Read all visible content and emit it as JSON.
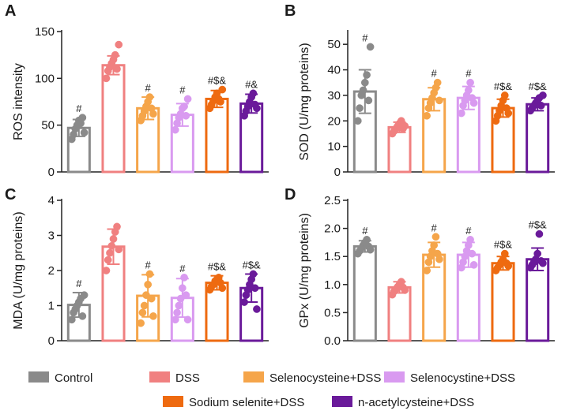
{
  "categories": [
    "Control",
    "DSS",
    "Selenocysteine+DSS",
    "Selenocystine+DSS",
    "Sodium selenite+DSS",
    "n-acetylcysteine+DSS"
  ],
  "colors": [
    "#8a8a8a",
    "#f08080",
    "#f5a54a",
    "#d99af0",
    "#ee6a10",
    "#6a1a9a"
  ],
  "chart_data": [
    {
      "type": "bar",
      "panel": "A",
      "ylabel": "ROS intensity",
      "ylim": [
        0,
        150
      ],
      "yticks": [
        0,
        50,
        100,
        150
      ],
      "values": [
        47,
        114,
        68,
        61,
        78,
        73
      ],
      "errors": [
        9,
        10,
        12,
        12,
        9,
        10
      ],
      "annotations": [
        "#",
        "",
        "#",
        "#",
        "#$&",
        "#&"
      ],
      "points": [
        [
          35,
          40,
          46,
          50,
          55,
          52,
          58,
          42
        ],
        [
          100,
          108,
          112,
          116,
          120,
          125,
          110,
          136
        ],
        [
          55,
          60,
          65,
          70,
          75,
          80,
          68,
          62
        ],
        [
          45,
          52,
          58,
          62,
          68,
          70,
          60,
          78
        ],
        [
          68,
          72,
          76,
          80,
          84,
          78,
          75,
          88
        ],
        [
          60,
          65,
          70,
          75,
          80,
          84,
          72,
          68
        ]
      ]
    },
    {
      "type": "bar",
      "panel": "B",
      "ylabel": "SOD (U/mg proteins)",
      "ylim": [
        0,
        55
      ],
      "yticks": [
        0,
        10,
        20,
        30,
        40,
        50
      ],
      "values": [
        31.5,
        17.5,
        28.5,
        29,
        25,
        26.5
      ],
      "errors": [
        8.5,
        2,
        4.5,
        4.5,
        3.5,
        2.5
      ],
      "annotations": [
        "#",
        "",
        "#",
        "#",
        "#$&",
        "#$&"
      ],
      "points": [
        [
          20,
          25,
          30,
          32,
          35,
          38,
          28,
          49
        ],
        [
          15,
          16,
          17,
          18,
          19,
          20,
          17,
          18
        ],
        [
          22,
          25,
          27,
          29,
          31,
          33,
          35,
          28
        ],
        [
          23,
          26,
          28,
          30,
          32,
          35,
          29,
          27
        ],
        [
          20,
          22,
          24,
          26,
          28,
          30,
          25,
          23
        ],
        [
          24,
          25,
          26,
          27,
          28,
          29,
          26,
          30
        ]
      ]
    },
    {
      "type": "bar",
      "panel": "C",
      "ylabel": "MDA  (U/mg proteins)",
      "ylim": [
        0,
        4
      ],
      "yticks": [
        0,
        1,
        2,
        3,
        4
      ],
      "values": [
        1.02,
        2.68,
        1.28,
        1.22,
        1.65,
        1.5
      ],
      "errors": [
        0.35,
        0.5,
        0.6,
        0.55,
        0.2,
        0.4
      ],
      "annotations": [
        "#",
        "",
        "#",
        "#",
        "#$&",
        "#$&"
      ],
      "points": [
        [
          0.6,
          0.8,
          0.9,
          1.0,
          1.1,
          1.2,
          0.7,
          1.3
        ],
        [
          2.0,
          2.3,
          2.5,
          2.7,
          2.9,
          3.1,
          3.25,
          2.6
        ],
        [
          0.5,
          0.8,
          1.0,
          1.3,
          1.6,
          1.9,
          1.2,
          0.7
        ],
        [
          0.6,
          0.8,
          1.0,
          1.2,
          1.5,
          1.8,
          1.3,
          0.6
        ],
        [
          1.45,
          1.55,
          1.6,
          1.7,
          1.75,
          1.8,
          1.65,
          1.5
        ],
        [
          1.1,
          1.3,
          1.45,
          1.6,
          1.75,
          1.9,
          1.5,
          0.9
        ]
      ]
    },
    {
      "type": "bar",
      "panel": "D",
      "ylabel": "GPx (U/mg proteins)",
      "ylim": [
        0,
        2.5
      ],
      "yticks": [
        0,
        0.5,
        1.0,
        1.5,
        2.0,
        2.5
      ],
      "ytick_labels": [
        "0.0",
        "0.5",
        "1.0",
        "1.5",
        "2.0",
        "2.5"
      ],
      "values": [
        1.68,
        0.95,
        1.53,
        1.53,
        1.38,
        1.45
      ],
      "errors": [
        0.1,
        0.1,
        0.22,
        0.22,
        0.12,
        0.2
      ],
      "annotations": [
        "#",
        "",
        "#",
        "#",
        "#$&",
        "#$&"
      ],
      "points": [
        [
          1.55,
          1.6,
          1.65,
          1.7,
          1.75,
          1.8,
          1.68,
          1.62
        ],
        [
          0.82,
          0.88,
          0.92,
          0.96,
          1.0,
          1.05,
          0.95,
          0.9
        ],
        [
          1.25,
          1.4,
          1.5,
          1.6,
          1.7,
          1.85,
          1.55,
          1.45
        ],
        [
          1.3,
          1.4,
          1.5,
          1.6,
          1.7,
          1.8,
          1.55,
          1.35
        ],
        [
          1.25,
          1.3,
          1.35,
          1.4,
          1.45,
          1.55,
          1.38,
          1.33
        ],
        [
          1.3,
          1.35,
          1.4,
          1.45,
          1.55,
          1.9,
          1.42,
          1.38
        ]
      ]
    }
  ]
}
